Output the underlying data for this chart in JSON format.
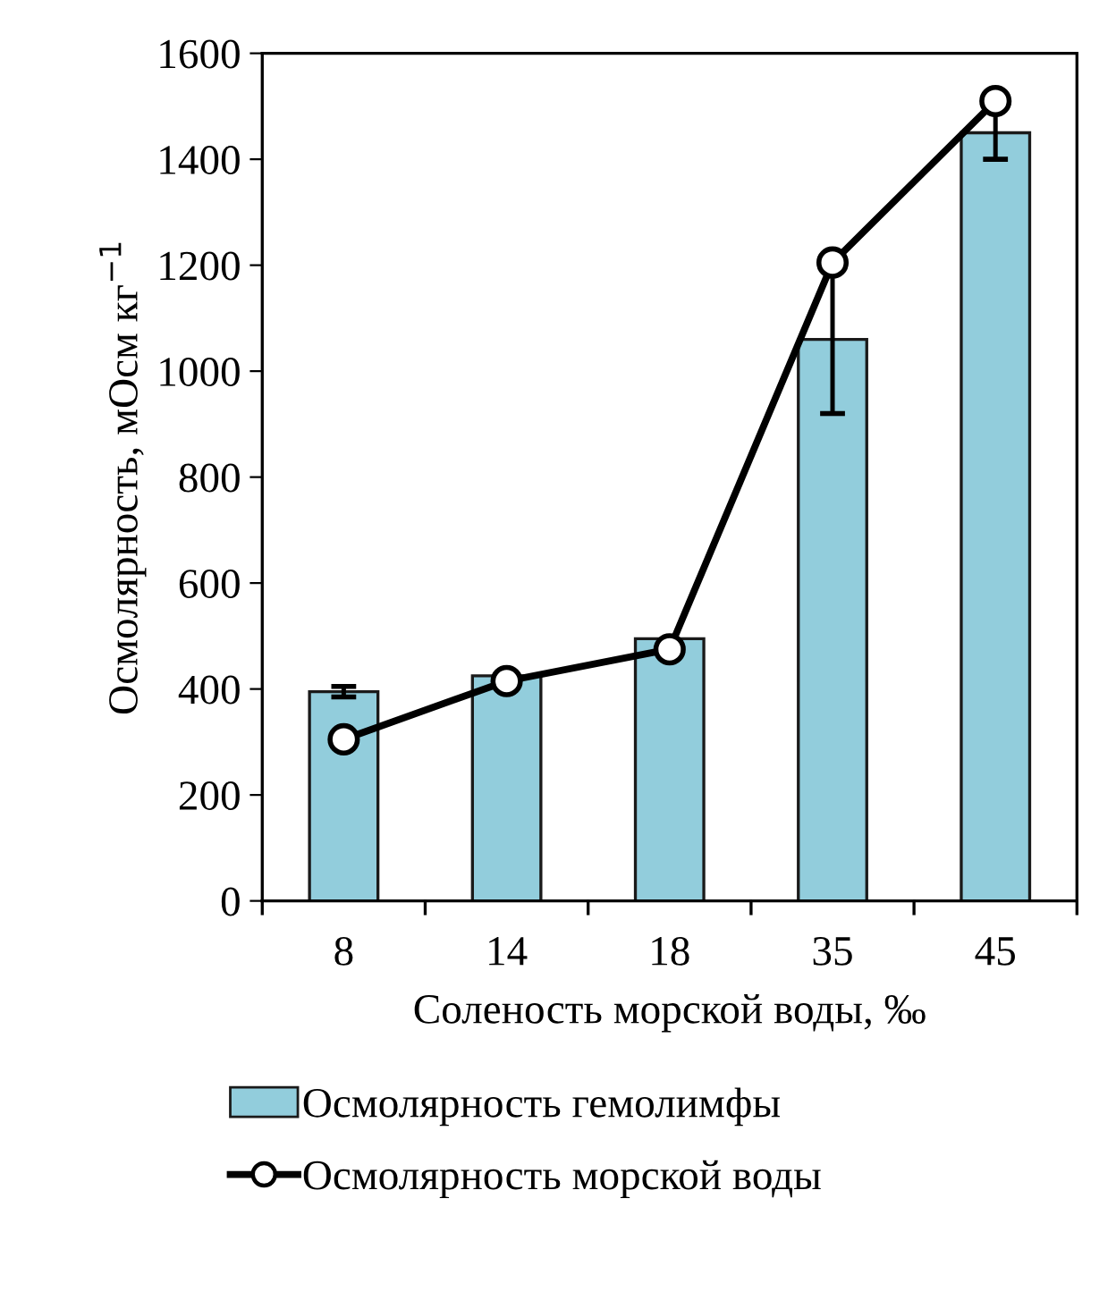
{
  "chart_data": {
    "type": "bar",
    "xlabel": "Соленость морской воды, ‰",
    "ylabel": "Осмолярность, мОсм кг$^{−1}$",
    "categories": [
      "8",
      "14",
      "18",
      "35",
      "45"
    ],
    "series": [
      {
        "name": "Осмолярность гемолимфы",
        "color": "#92cddc",
        "values": [
          395,
          425,
          495,
          1060,
          1450
        ],
        "errors": [
          10,
          null,
          null,
          140,
          50
        ]
      },
      {
        "name": "Осмолярность морской воды",
        "type": "line",
        "color": "#000000",
        "values": [
          305,
          415,
          475,
          1205,
          1510
        ],
        "marker": "circle"
      }
    ],
    "ylim": [
      0,
      1600
    ],
    "yticks": [
      0,
      200,
      400,
      600,
      800,
      1000,
      1200,
      1400,
      1600
    ],
    "grid": false,
    "legend": "bottom"
  }
}
